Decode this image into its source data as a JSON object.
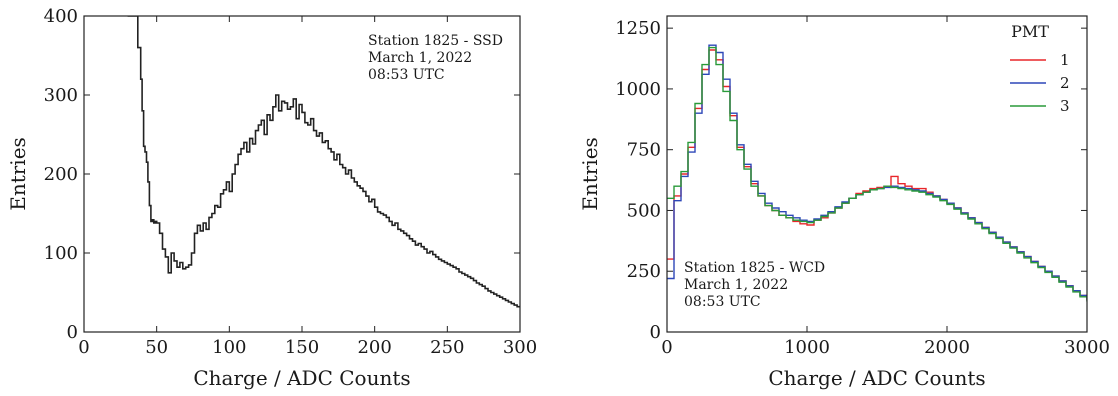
{
  "chart_data": [
    {
      "type": "line",
      "style": "step",
      "xlabel": "Charge / ADC Counts",
      "ylabel": "Entries",
      "xlim": [
        0,
        300
      ],
      "ylim": [
        0,
        400
      ],
      "xticks": [
        0,
        50,
        100,
        150,
        200,
        250,
        300
      ],
      "yticks": [
        0,
        100,
        200,
        300,
        400
      ],
      "grid": false,
      "annotation": [
        "Station 1825 - SSD",
        "March 1, 2022",
        "08:53 UTC"
      ],
      "series": [
        {
          "color": "#222222",
          "x": [
            30,
            35,
            37,
            39,
            40,
            41,
            42,
            43,
            44,
            45,
            46,
            47,
            48,
            49,
            50,
            52,
            54,
            56,
            58,
            60,
            62,
            64,
            66,
            68,
            70,
            72,
            74,
            76,
            78,
            80,
            82,
            84,
            86,
            88,
            90,
            92,
            94,
            96,
            98,
            100,
            102,
            104,
            106,
            108,
            110,
            112,
            114,
            116,
            118,
            120,
            122,
            124,
            126,
            128,
            130,
            132,
            134,
            136,
            138,
            140,
            142,
            144,
            146,
            148,
            150,
            152,
            154,
            156,
            158,
            160,
            162,
            164,
            166,
            168,
            170,
            172,
            174,
            176,
            178,
            180,
            182,
            184,
            186,
            188,
            190,
            192,
            194,
            196,
            198,
            200,
            202,
            204,
            206,
            208,
            210,
            212,
            214,
            216,
            218,
            220,
            222,
            224,
            226,
            228,
            230,
            232,
            234,
            236,
            238,
            240,
            242,
            244,
            246,
            248,
            250,
            252,
            254,
            256,
            258,
            260,
            262,
            264,
            266,
            268,
            270,
            272,
            274,
            276,
            278,
            280,
            282,
            284,
            286,
            288,
            290,
            292,
            294,
            296,
            298
          ],
          "values": [
            480,
            410,
            360,
            320,
            280,
            235,
            228,
            215,
            190,
            160,
            140,
            142,
            138,
            140,
            138,
            125,
            105,
            95,
            75,
            100,
            90,
            82,
            88,
            80,
            82,
            85,
            100,
            125,
            135,
            128,
            138,
            130,
            145,
            150,
            160,
            158,
            175,
            180,
            190,
            178,
            200,
            212,
            225,
            232,
            240,
            228,
            245,
            238,
            255,
            262,
            268,
            250,
            275,
            268,
            285,
            300,
            280,
            292,
            290,
            282,
            285,
            295,
            270,
            288,
            278,
            265,
            262,
            270,
            255,
            248,
            252,
            240,
            242,
            232,
            228,
            218,
            225,
            212,
            208,
            200,
            205,
            195,
            190,
            185,
            182,
            178,
            172,
            165,
            168,
            158,
            152,
            150,
            148,
            145,
            140,
            135,
            138,
            130,
            128,
            125,
            122,
            118,
            115,
            110,
            112,
            108,
            105,
            100,
            102,
            98,
            95,
            92,
            90,
            88,
            86,
            84,
            82,
            80,
            76,
            74,
            72,
            70,
            68,
            65,
            62,
            60,
            58,
            55,
            52,
            50,
            48,
            46,
            44,
            42,
            40,
            38,
            36,
            34,
            32
          ]
        }
      ]
    },
    {
      "type": "line",
      "style": "step",
      "xlabel": "Charge / ADC Counts",
      "ylabel": "Entries",
      "xlim": [
        0,
        3000
      ],
      "ylim": [
        0,
        1300
      ],
      "xticks": [
        0,
        1000,
        2000,
        3000
      ],
      "yticks": [
        0,
        250,
        500,
        750,
        1000,
        1250
      ],
      "grid": false,
      "annotation": [
        "Station 1825 - WCD",
        "March 1, 2022",
        "08:53 UTC"
      ],
      "legend": {
        "title": "PMT",
        "position": "top-right"
      },
      "series": [
        {
          "name": "1",
          "color": "#e8262a",
          "x": [
            0,
            50,
            100,
            150,
            200,
            250,
            300,
            350,
            400,
            450,
            500,
            550,
            600,
            650,
            700,
            750,
            800,
            850,
            900,
            950,
            1000,
            1050,
            1100,
            1150,
            1200,
            1250,
            1300,
            1350,
            1400,
            1450,
            1500,
            1550,
            1600,
            1650,
            1700,
            1750,
            1800,
            1850,
            1900,
            1950,
            2000,
            2050,
            2100,
            2150,
            2200,
            2250,
            2300,
            2350,
            2400,
            2450,
            2500,
            2550,
            2600,
            2650,
            2700,
            2750,
            2800,
            2850,
            2900,
            2950,
            3000
          ],
          "values": [
            300,
            560,
            650,
            760,
            920,
            1080,
            1160,
            1120,
            1010,
            890,
            760,
            680,
            610,
            560,
            520,
            500,
            480,
            470,
            455,
            445,
            440,
            460,
            470,
            490,
            510,
            530,
            550,
            570,
            580,
            590,
            595,
            600,
            640,
            610,
            600,
            590,
            590,
            575,
            560,
            545,
            530,
            510,
            490,
            470,
            450,
            430,
            410,
            390,
            370,
            350,
            330,
            310,
            290,
            270,
            250,
            230,
            210,
            190,
            170,
            150,
            130
          ]
        },
        {
          "name": "2",
          "color": "#2d47b8",
          "x": [
            0,
            50,
            100,
            150,
            200,
            250,
            300,
            350,
            400,
            450,
            500,
            550,
            600,
            650,
            700,
            750,
            800,
            850,
            900,
            950,
            1000,
            1050,
            1100,
            1150,
            1200,
            1250,
            1300,
            1350,
            1400,
            1450,
            1500,
            1550,
            1600,
            1650,
            1700,
            1750,
            1800,
            1850,
            1900,
            1950,
            2000,
            2050,
            2100,
            2150,
            2200,
            2250,
            2300,
            2350,
            2400,
            2450,
            2500,
            2550,
            2600,
            2650,
            2700,
            2750,
            2800,
            2850,
            2900,
            2950,
            3000
          ],
          "values": [
            220,
            540,
            640,
            740,
            900,
            1060,
            1180,
            1150,
            1040,
            900,
            770,
            690,
            620,
            570,
            530,
            510,
            495,
            480,
            470,
            460,
            455,
            465,
            480,
            495,
            515,
            535,
            550,
            565,
            575,
            585,
            590,
            595,
            600,
            595,
            590,
            585,
            580,
            570,
            560,
            545,
            530,
            510,
            490,
            470,
            450,
            430,
            410,
            390,
            370,
            350,
            330,
            310,
            290,
            270,
            250,
            230,
            210,
            190,
            170,
            150,
            130
          ]
        },
        {
          "name": "3",
          "color": "#2a9a3a",
          "x": [
            0,
            50,
            100,
            150,
            200,
            250,
            300,
            350,
            400,
            450,
            500,
            550,
            600,
            650,
            700,
            750,
            800,
            850,
            900,
            950,
            1000,
            1050,
            1100,
            1150,
            1200,
            1250,
            1300,
            1350,
            1400,
            1450,
            1500,
            1550,
            1600,
            1650,
            1700,
            1750,
            1800,
            1850,
            1900,
            1950,
            2000,
            2050,
            2100,
            2150,
            2200,
            2250,
            2300,
            2350,
            2400,
            2450,
            2500,
            2550,
            2600,
            2650,
            2700,
            2750,
            2800,
            2850,
            2900,
            2950,
            3000
          ],
          "values": [
            550,
            600,
            660,
            780,
            940,
            1100,
            1170,
            1100,
            990,
            870,
            750,
            670,
            600,
            560,
            520,
            500,
            480,
            470,
            460,
            455,
            450,
            460,
            475,
            490,
            510,
            530,
            550,
            565,
            575,
            585,
            590,
            600,
            595,
            590,
            585,
            580,
            575,
            565,
            555,
            540,
            525,
            505,
            485,
            465,
            445,
            425,
            405,
            385,
            365,
            345,
            325,
            305,
            285,
            265,
            245,
            225,
            205,
            185,
            165,
            145,
            125
          ]
        }
      ]
    }
  ]
}
